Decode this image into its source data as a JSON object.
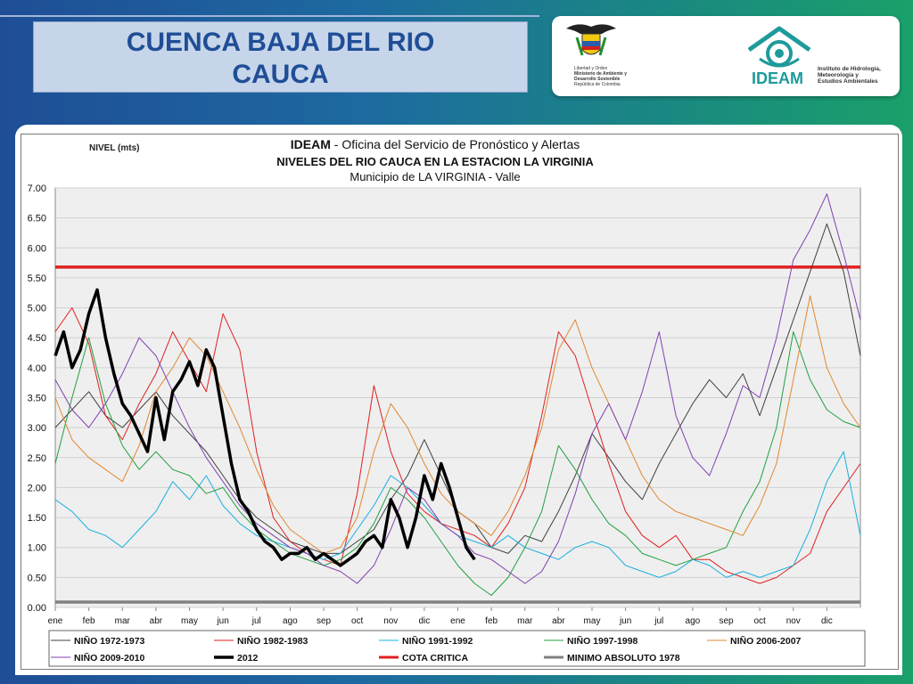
{
  "header": {
    "title_line1": "CUENCA  BAJA  DEL RIO",
    "title_line2": "CAUCA"
  },
  "logos": {
    "ministry_text": [
      "Libertad y Orden",
      "Ministerio de Ambiente y",
      "Desarrollo Sostenible",
      "República de Colombia"
    ],
    "ideam_word": "IDEAM",
    "ideam_sub": [
      "Instituto de Hidrología,",
      "Meteorología y",
      "Estudios Ambientales"
    ]
  },
  "chart_data": {
    "type": "line",
    "title_bold": "IDEAM",
    "title_rest": " - Oficina del Servicio de Pronóstico y Alertas",
    "subtitle": "NIVELES DEL RIO CAUCA EN LA ESTACION LA VIRGINIA",
    "subtitle2": "Municipio de LA VIRGINIA - Valle",
    "ylabel": "NIVEL (mts)",
    "ylim": [
      0,
      7
    ],
    "yticks": [
      "0.00",
      "0.50",
      "1.00",
      "1.50",
      "2.00",
      "2.50",
      "3.00",
      "3.50",
      "4.00",
      "4.50",
      "5.00",
      "5.50",
      "6.00",
      "6.50",
      "7.00"
    ],
    "xticks": [
      "ene",
      "feb",
      "mar",
      "abr",
      "may",
      "jun",
      "jul",
      "ago",
      "sep",
      "oct",
      "nov",
      "dic",
      "ene",
      "feb",
      "mar",
      "abr",
      "may",
      "jun",
      "jul",
      "ago",
      "sep",
      "oct",
      "nov",
      "dic"
    ],
    "x_unit": "month index from January of first year (0-24)",
    "reference_lines": [
      {
        "name": "COTA CRITICA",
        "value": 5.68,
        "color": "#e02020"
      },
      {
        "name": "MINIMO ABSOLUTO 1978",
        "value": 0.09,
        "color": "#808080"
      }
    ],
    "series": [
      {
        "name": "NIÑO 1972-1973",
        "color": "#404040",
        "width": 1,
        "x": [
          0,
          0.5,
          1,
          1.5,
          2,
          2.5,
          3,
          3.5,
          4,
          4.5,
          5,
          5.5,
          6,
          6.5,
          7,
          7.5,
          8,
          8.5,
          9,
          9.5,
          10,
          10.5,
          11,
          11.5,
          12,
          12.5,
          13,
          13.5,
          14,
          14.5,
          15,
          15.5,
          16,
          16.5,
          17,
          17.5,
          18,
          18.5,
          19,
          19.5,
          20,
          20.5,
          21,
          21.5,
          22,
          22.5,
          23,
          23.5,
          24
        ],
        "y": [
          3.0,
          3.3,
          3.6,
          3.2,
          3.0,
          3.3,
          3.6,
          3.2,
          2.9,
          2.6,
          2.2,
          1.8,
          1.5,
          1.3,
          1.1,
          1.0,
          0.9,
          0.9,
          1.1,
          1.3,
          1.8,
          2.2,
          2.8,
          2.2,
          1.6,
          1.4,
          1.0,
          0.9,
          1.2,
          1.1,
          1.6,
          2.2,
          2.9,
          2.5,
          2.1,
          1.8,
          2.4,
          2.9,
          3.4,
          3.8,
          3.5,
          3.9,
          3.2,
          4.0,
          4.8,
          5.6,
          6.4,
          5.6,
          4.2
        ]
      },
      {
        "name": "NIÑO 1982-1983",
        "color": "#e02020",
        "width": 1,
        "x": [
          0,
          0.5,
          1,
          1.5,
          2,
          2.5,
          3,
          3.5,
          4,
          4.5,
          5,
          5.5,
          6,
          6.5,
          7,
          7.5,
          8,
          8.5,
          9,
          9.5,
          10,
          10.5,
          11,
          11.5,
          12,
          12.5,
          13,
          13.5,
          14,
          14.5,
          15,
          15.5,
          16,
          16.5,
          17,
          17.5,
          18,
          18.5,
          19,
          19.5,
          20,
          20.5,
          21,
          21.5,
          22,
          22.5,
          23,
          23.5,
          24
        ],
        "y": [
          4.6,
          5.0,
          4.4,
          3.2,
          2.8,
          3.4,
          3.9,
          4.6,
          4.1,
          3.6,
          4.9,
          4.3,
          2.6,
          1.5,
          1.1,
          0.9,
          0.8,
          0.7,
          1.9,
          3.7,
          2.6,
          1.9,
          1.6,
          1.4,
          1.3,
          1.2,
          1.0,
          1.4,
          2.0,
          3.2,
          4.6,
          4.2,
          3.3,
          2.4,
          1.6,
          1.2,
          1.0,
          1.2,
          0.8,
          0.8,
          0.6,
          0.5,
          0.4,
          0.5,
          0.7,
          0.9,
          1.6,
          2.0,
          2.4
        ]
      },
      {
        "name": "NIÑO 1991-1992",
        "color": "#18b0e0",
        "width": 1,
        "x": [
          0,
          0.5,
          1,
          1.5,
          2,
          2.5,
          3,
          3.5,
          4,
          4.5,
          5,
          5.5,
          6,
          6.5,
          7,
          7.5,
          8,
          8.5,
          9,
          9.5,
          10,
          10.5,
          11,
          11.5,
          12,
          12.5,
          13,
          13.5,
          14,
          14.5,
          15,
          15.5,
          16,
          16.5,
          17,
          17.5,
          18,
          18.5,
          19,
          19.5,
          20,
          20.5,
          21,
          21.5,
          22,
          22.5,
          23,
          23.5,
          24
        ],
        "y": [
          1.8,
          1.6,
          1.3,
          1.2,
          1.0,
          1.3,
          1.6,
          2.1,
          1.8,
          2.2,
          1.7,
          1.4,
          1.2,
          1.1,
          1.0,
          0.9,
          0.8,
          0.9,
          1.3,
          1.7,
          2.2,
          2.0,
          1.7,
          1.4,
          1.2,
          1.1,
          1.0,
          1.2,
          1.0,
          0.9,
          0.8,
          1.0,
          1.1,
          1.0,
          0.7,
          0.6,
          0.5,
          0.6,
          0.8,
          0.7,
          0.5,
          0.6,
          0.5,
          0.6,
          0.7,
          1.3,
          2.1,
          2.6,
          1.2
        ]
      },
      {
        "name": "NIÑO 1997-1998",
        "color": "#20a040",
        "width": 1,
        "x": [
          0,
          0.5,
          1,
          1.5,
          2,
          2.5,
          3,
          3.5,
          4,
          4.5,
          5,
          5.5,
          6,
          6.5,
          7,
          7.5,
          8,
          8.5,
          9,
          9.5,
          10,
          10.5,
          11,
          11.5,
          12,
          12.5,
          13,
          13.5,
          14,
          14.5,
          15,
          15.5,
          16,
          16.5,
          17,
          17.5,
          18,
          18.5,
          19,
          19.5,
          20,
          20.5,
          21,
          21.5,
          22,
          22.5,
          23,
          23.5,
          24
        ],
        "y": [
          2.4,
          3.5,
          4.5,
          3.4,
          2.7,
          2.3,
          2.6,
          2.3,
          2.2,
          1.9,
          2.0,
          1.6,
          1.3,
          1.1,
          0.9,
          0.8,
          0.7,
          0.8,
          1.0,
          1.4,
          2.0,
          1.8,
          1.5,
          1.1,
          0.7,
          0.4,
          0.2,
          0.5,
          1.0,
          1.6,
          2.7,
          2.3,
          1.8,
          1.4,
          1.2,
          0.9,
          0.8,
          0.7,
          0.8,
          0.9,
          1.0,
          1.6,
          2.1,
          3.0,
          4.6,
          3.8,
          3.3,
          3.1,
          3.0
        ]
      },
      {
        "name": "NIÑO 2006-2007",
        "color": "#e08830",
        "width": 1,
        "x": [
          0,
          0.5,
          1,
          1.5,
          2,
          2.5,
          3,
          3.5,
          4,
          4.5,
          5,
          5.5,
          6,
          6.5,
          7,
          7.5,
          8,
          8.5,
          9,
          9.5,
          10,
          10.5,
          11,
          11.5,
          12,
          12.5,
          13,
          13.5,
          14,
          14.5,
          15,
          15.5,
          16,
          16.5,
          17,
          17.5,
          18,
          18.5,
          19,
          19.5,
          20,
          20.5,
          21,
          21.5,
          22,
          22.5,
          23,
          23.5,
          24
        ],
        "y": [
          3.5,
          2.8,
          2.5,
          2.3,
          2.1,
          2.7,
          3.6,
          4.0,
          4.5,
          4.2,
          3.6,
          3.0,
          2.3,
          1.7,
          1.3,
          1.1,
          0.9,
          1.0,
          1.5,
          2.6,
          3.4,
          3.0,
          2.4,
          1.9,
          1.6,
          1.4,
          1.2,
          1.6,
          2.2,
          3.0,
          4.3,
          4.8,
          4.0,
          3.4,
          2.8,
          2.2,
          1.8,
          1.6,
          1.5,
          1.4,
          1.3,
          1.2,
          1.7,
          2.4,
          3.8,
          5.2,
          4.0,
          3.4,
          3.0
        ]
      },
      {
        "name": "NIÑO 2009-2010",
        "color": "#8040b0",
        "width": 1,
        "x": [
          0,
          0.5,
          1,
          1.5,
          2,
          2.5,
          3,
          3.5,
          4,
          4.5,
          5,
          5.5,
          6,
          6.5,
          7,
          7.5,
          8,
          8.5,
          9,
          9.5,
          10,
          10.5,
          11,
          11.5,
          12,
          12.5,
          13,
          13.5,
          14,
          14.5,
          15,
          15.5,
          16,
          16.5,
          17,
          17.5,
          18,
          18.5,
          19,
          19.5,
          20,
          20.5,
          21,
          21.5,
          22,
          22.5,
          23,
          23.5,
          24
        ],
        "y": [
          3.8,
          3.3,
          3.0,
          3.4,
          3.9,
          4.5,
          4.2,
          3.6,
          3.0,
          2.5,
          2.1,
          1.7,
          1.4,
          1.2,
          1.0,
          0.9,
          0.7,
          0.6,
          0.4,
          0.7,
          1.3,
          2.0,
          1.8,
          1.4,
          1.2,
          0.9,
          0.8,
          0.6,
          0.4,
          0.6,
          1.1,
          1.9,
          2.9,
          3.4,
          2.8,
          3.6,
          4.6,
          3.2,
          2.5,
          2.2,
          2.9,
          3.7,
          3.5,
          4.5,
          5.8,
          6.3,
          6.9,
          5.9,
          4.8
        ]
      },
      {
        "name": "2012",
        "color": "#000000",
        "width": 3.5,
        "x": [
          0,
          0.25,
          0.5,
          0.75,
          1,
          1.25,
          1.5,
          1.75,
          2,
          2.25,
          2.5,
          2.75,
          3,
          3.25,
          3.5,
          3.75,
          4,
          4.25,
          4.5,
          4.75,
          5,
          5.25,
          5.5,
          5.75,
          6,
          6.25,
          6.5,
          6.75,
          7,
          7.25,
          7.5,
          7.75,
          8,
          8.25,
          8.5,
          8.75,
          9,
          9.25,
          9.5,
          9.75,
          10,
          10.25,
          10.5,
          10.75,
          11,
          11.25,
          11.5,
          11.75,
          12,
          12.25,
          12.5
        ],
        "y": [
          4.2,
          4.6,
          4.0,
          4.3,
          4.9,
          5.3,
          4.5,
          3.9,
          3.4,
          3.2,
          2.9,
          2.6,
          3.5,
          2.8,
          3.6,
          3.8,
          4.1,
          3.7,
          4.3,
          4.0,
          3.2,
          2.4,
          1.8,
          1.6,
          1.3,
          1.1,
          1.0,
          0.8,
          0.9,
          0.9,
          1.0,
          0.8,
          0.9,
          0.8,
          0.7,
          0.8,
          0.9,
          1.1,
          1.2,
          1.0,
          1.8,
          1.5,
          1.0,
          1.5,
          2.2,
          1.8,
          2.4,
          2.0,
          1.5,
          1.0,
          0.8
        ]
      }
    ],
    "legend": [
      {
        "name": "NIÑO 1972-1973",
        "color": "#404040",
        "width": 1
      },
      {
        "name": "NIÑO 1982-1983",
        "color": "#e02020",
        "width": 1
      },
      {
        "name": "NIÑO 1991-1992",
        "color": "#18b0e0",
        "width": 1
      },
      {
        "name": "NIÑO 1997-1998",
        "color": "#20a040",
        "width": 1
      },
      {
        "name": "NIÑO 2006-2007",
        "color": "#e08830",
        "width": 1
      },
      {
        "name": "NIÑO 2009-2010",
        "color": "#8040b0",
        "width": 1
      },
      {
        "name": "2012",
        "color": "#000000",
        "width": 3.5
      },
      {
        "name": "COTA CRITICA",
        "color": "#e02020",
        "width": 3
      },
      {
        "name": "MINIMO ABSOLUTO 1978",
        "color": "#808080",
        "width": 3
      }
    ],
    "grid": true,
    "legend_position": "bottom"
  }
}
